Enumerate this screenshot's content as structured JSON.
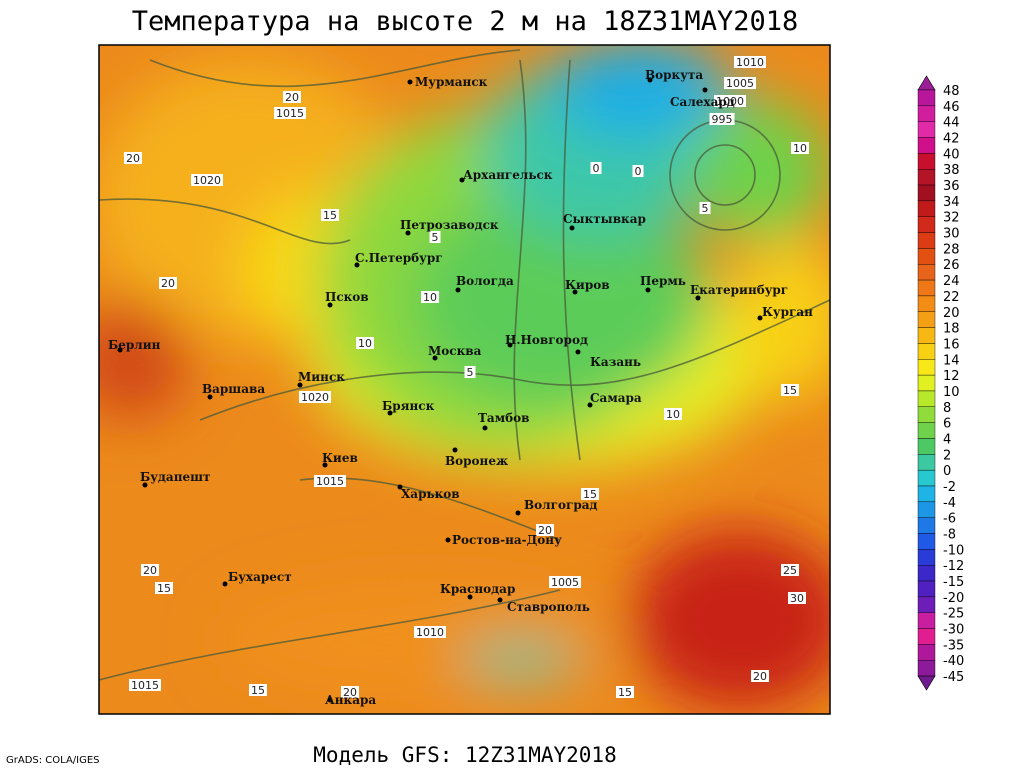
{
  "header": {
    "title": "Температура на высоте 2 м на 18Z31MAY2018"
  },
  "footer": {
    "model": "Модель GFS: 12Z31MAY2018",
    "credit": "GrADS: COLA/IGES"
  },
  "cities": [
    "Мурманск",
    "Воркута",
    "Салехард",
    "Архангельск",
    "Петрозаводск",
    "Сыктывкар",
    "С.Петербург",
    "Вологда",
    "Киров",
    "Пермь",
    "Екатеринбург",
    "Курган",
    "Псков",
    "Минск",
    "Москва",
    "Н.Новгород",
    "Казань",
    "Берлин",
    "Варшава",
    "Брянск",
    "Самара",
    "Тамбов",
    "Воронеж",
    "Киев",
    "Будапешт",
    "Харьков",
    "Волгоград",
    "Ростов-на-Дону",
    "Бухарест",
    "Краснодар",
    "Ставрополь",
    "Анкара"
  ],
  "contour_labels": [
    1010,
    1005,
    1000,
    995,
    1015,
    1020,
    1020,
    1015,
    1010,
    1005,
    1015,
    20,
    15,
    10,
    5,
    0,
    20,
    15,
    10,
    5,
    0,
    20,
    10,
    5,
    15,
    20,
    15,
    10,
    20,
    25,
    30,
    20,
    15,
    15,
    20
  ],
  "colorbar": {
    "labels": [
      48,
      46,
      44,
      42,
      40,
      38,
      36,
      34,
      32,
      30,
      28,
      26,
      24,
      22,
      20,
      18,
      16,
      14,
      12,
      10,
      8,
      6,
      4,
      2,
      0,
      -2,
      -4,
      -6,
      -8,
      -10,
      -12,
      -15,
      -20,
      -25,
      -30,
      -35,
      -40,
      -45
    ]
  }
}
